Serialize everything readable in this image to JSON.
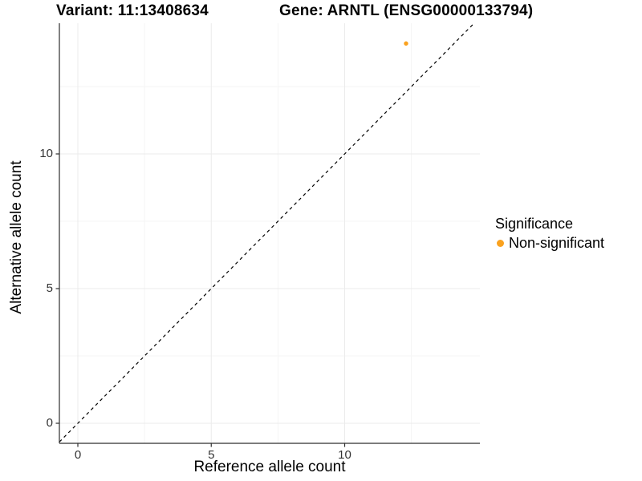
{
  "header": {
    "title_left": "Variant: 11:13408634",
    "title_right": "Gene: ARNTL (ENSG00000133794)"
  },
  "axes": {
    "x_title": "Reference allele count",
    "y_title": "Alternative allele count"
  },
  "legend": {
    "title": "Significance",
    "entries": [
      {
        "label": "Non-significant",
        "color": "#FAA21F"
      }
    ]
  },
  "colors": {
    "point_orange": "#FAA21F",
    "grid_major": "#EBEBEB",
    "grid_minor": "#F5F5F5",
    "axis_line": "#2E2E2E",
    "identity_line": "#000000",
    "tick_text": "#333333"
  },
  "chart_data": {
    "type": "scatter",
    "title": "Variant: 11:13408634   Gene: ARNTL (ENSG00000133794)",
    "xlabel": "Reference allele count",
    "ylabel": "Alternative allele count",
    "xlim": [
      -0.7,
      15.1
    ],
    "ylim": [
      -0.75,
      14.85
    ],
    "x_ticks": [
      0,
      5,
      10
    ],
    "y_ticks": [
      0,
      5,
      10
    ],
    "x_minor_ticks": [
      2.5,
      7.5,
      12.5
    ],
    "y_minor_ticks": [
      2.5,
      7.5,
      12.5
    ],
    "grid": "major and minor, light gray on white",
    "legend_position": "right-center",
    "series": [
      {
        "name": "Non-significant",
        "color": "#FAA21F",
        "marker": "circle",
        "points": [
          {
            "x": 12.3,
            "y": 14.1
          }
        ]
      }
    ],
    "reference_line": {
      "type": "identity y=x",
      "style": "dashed",
      "color": "#000000"
    }
  }
}
